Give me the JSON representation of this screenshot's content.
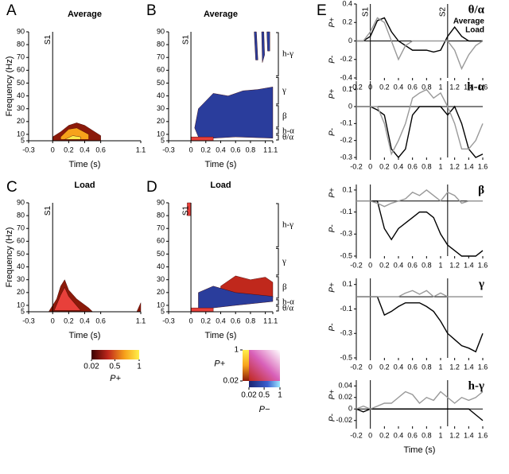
{
  "chart_data": [
    {
      "type": "contour",
      "panel": "A",
      "title": "Average",
      "title_color": "#000000",
      "ylabel": "Frequency (Hz)",
      "xlabel": "Time (s)",
      "xlim": [
        -0.3,
        1.1
      ],
      "xticks": [
        -0.3,
        0,
        0.2,
        0.4,
        0.6,
        1.1
      ],
      "ylim": [
        5,
        90
      ],
      "yticks": [
        5,
        10,
        20,
        30,
        40,
        50,
        60,
        70,
        80,
        90
      ],
      "events": [
        {
          "label": "S1",
          "x": 0
        }
      ],
      "regions": [
        {
          "color": "#8b1a0a",
          "x": [
            0,
            0.1,
            0.2,
            0.3,
            0.4,
            0.5,
            0.6,
            0.6,
            0
          ],
          "y": [
            8,
            12,
            17,
            19,
            17,
            13,
            9,
            5,
            5
          ]
        },
        {
          "color": "#f7a21b",
          "x": [
            0.1,
            0.2,
            0.3,
            0.45,
            0.45,
            0.1
          ],
          "y": [
            8,
            14,
            15,
            10,
            6,
            6
          ]
        },
        {
          "color": "#fde84a",
          "x": [
            0.15,
            0.25,
            0.35,
            0.35,
            0.15
          ],
          "y": [
            6,
            9,
            8,
            6,
            6
          ]
        }
      ]
    },
    {
      "type": "contour",
      "panel": "B",
      "title": "Average",
      "title_color": "#000000",
      "xlabel": "Time (s)",
      "xlim": [
        -0.3,
        1.1
      ],
      "xticks": [
        -0.3,
        0,
        0.2,
        0.4,
        0.6,
        0.8,
        1,
        1.1
      ],
      "ylim": [
        5,
        90
      ],
      "yticks": [
        5,
        10,
        20,
        30,
        40,
        50,
        60,
        70,
        80,
        90
      ],
      "events": [
        {
          "label": "S1",
          "x": 0
        }
      ],
      "bands": [
        {
          "label": "h-γ",
          "y": [
            55,
            90
          ]
        },
        {
          "label": "γ",
          "y": [
            33,
            55
          ]
        },
        {
          "label": "β",
          "y": [
            15,
            33
          ]
        },
        {
          "label": "h-α",
          "y": [
            10,
            15
          ]
        },
        {
          "label": "θ/α",
          "y": [
            5,
            10
          ]
        }
      ],
      "regions": [
        {
          "color": "#2a3d9c",
          "x": [
            0.05,
            0.1,
            0.3,
            0.5,
            0.7,
            0.9,
            1.1,
            1.1,
            0.6,
            0.3,
            0.1
          ],
          "y": [
            15,
            30,
            42,
            40,
            44,
            45,
            47,
            7,
            8,
            7,
            8
          ]
        },
        {
          "color": "#2a3d9c",
          "x": [
            0.85,
            0.88,
            0.9,
            0.87
          ],
          "y": [
            90,
            90,
            68,
            68
          ]
        },
        {
          "color": "#2a3d9c",
          "x": [
            0.95,
            0.98,
            0.99,
            0.96
          ],
          "y": [
            90,
            90,
            72,
            66
          ]
        },
        {
          "color": "#2a3d9c",
          "x": [
            1.02,
            1.06,
            1.06,
            1.03
          ],
          "y": [
            90,
            90,
            75,
            75
          ]
        },
        {
          "color": "#e8403a",
          "x": [
            0,
            0.3,
            0.3,
            0
          ],
          "y": [
            5,
            5,
            8,
            8
          ]
        }
      ]
    },
    {
      "type": "contour",
      "panel": "C",
      "title": "Load",
      "title_color": "#999999",
      "ylabel": "Frequency (Hz)",
      "xlabel": "Time (s)",
      "xlim": [
        -0.3,
        1.1
      ],
      "xticks": [
        -0.3,
        0,
        0.2,
        0.4,
        0.6,
        1.1
      ],
      "ylim": [
        5,
        90
      ],
      "yticks": [
        5,
        10,
        20,
        30,
        40,
        50,
        60,
        70,
        80,
        90
      ],
      "events": [
        {
          "label": "S1",
          "x": 0
        }
      ],
      "regions": [
        {
          "color": "#8b1a0a",
          "x": [
            -0.05,
            0.05,
            0.1,
            0.15,
            0.2,
            0.3,
            0.45,
            0.5,
            -0.05
          ],
          "y": [
            5,
            15,
            25,
            30,
            22,
            15,
            8,
            5,
            5
          ]
        },
        {
          "color": "#e8403a",
          "x": [
            0.02,
            0.1,
            0.15,
            0.2,
            0.35,
            0.02
          ],
          "y": [
            6,
            18,
            24,
            17,
            6,
            6
          ]
        },
        {
          "color": "#8b1a0a",
          "x": [
            1.05,
            1.1,
            1.1
          ],
          "y": [
            5,
            12,
            5
          ]
        }
      ]
    },
    {
      "type": "contour",
      "panel": "D",
      "title": "Load",
      "title_color": "#999999",
      "xlabel": "Time (s)",
      "xlim": [
        -0.3,
        1.1
      ],
      "xticks": [
        -0.3,
        0,
        0.2,
        0.4,
        0.6,
        0.8,
        1,
        1.1
      ],
      "ylim": [
        5,
        90
      ],
      "yticks": [
        5,
        10,
        20,
        30,
        40,
        50,
        60,
        70,
        80,
        90
      ],
      "events": [
        {
          "label": "S1",
          "x": 0
        }
      ],
      "bands": [
        {
          "label": "h-γ",
          "y": [
            55,
            90
          ]
        },
        {
          "label": "γ",
          "y": [
            33,
            55
          ]
        },
        {
          "label": "β",
          "y": [
            15,
            33
          ]
        },
        {
          "label": "h-α",
          "y": [
            10,
            15
          ]
        },
        {
          "label": "θ/α",
          "y": [
            5,
            10
          ]
        }
      ],
      "regions": [
        {
          "color": "#c0281c",
          "x": [
            0.4,
            0.6,
            0.8,
            1.0,
            1.1,
            1.1,
            0.4
          ],
          "y": [
            25,
            33,
            30,
            32,
            28,
            16,
            16
          ]
        },
        {
          "color": "#2a3d9c",
          "x": [
            0.1,
            0.3,
            0.6,
            1.1,
            1.1,
            0.6,
            0.3,
            0.1
          ],
          "y": [
            20,
            25,
            20,
            17,
            13,
            10,
            8,
            5
          ]
        },
        {
          "color": "#e8403a",
          "x": [
            -0.05,
            0,
            0,
            -0.05
          ],
          "y": [
            80,
            80,
            90,
            90
          ]
        },
        {
          "color": "#e8403a",
          "x": [
            0,
            0.3,
            0.3,
            0
          ],
          "y": [
            5,
            5,
            8,
            8
          ]
        }
      ]
    },
    {
      "type": "colorbar",
      "label": "P+",
      "ticks": [
        0.02,
        0.5,
        1
      ]
    },
    {
      "type": "colormap2d",
      "ylabel": "P+",
      "yticks": [
        0.02,
        1
      ],
      "xlabel": "P−",
      "xticks": [
        0.02,
        0.5,
        1
      ]
    },
    {
      "type": "line",
      "panel": "E",
      "title": "θ/α",
      "legend": "top-right",
      "ylabel_pos": "P+",
      "ylabel_neg": "P-",
      "x": [
        -0.2,
        -0.1,
        0,
        0.1,
        0.2,
        0.3,
        0.4,
        0.5,
        0.6,
        0.7,
        0.8,
        0.9,
        1,
        1.1,
        1.2,
        1.3,
        1.4,
        1.5,
        1.6
      ],
      "xlim": [
        -0.2,
        1.6
      ],
      "xticks": [
        -0.2,
        0,
        0.2,
        0.4,
        0.6,
        0.8,
        1,
        1.2,
        1.4,
        1.6
      ],
      "ylim": [
        -0.4,
        0.4
      ],
      "yticks": [
        0.4,
        0.2,
        0,
        -0.2,
        -0.4
      ],
      "events": [
        {
          "label": "S1",
          "x": 0
        },
        {
          "label": "S2",
          "x": 1.1
        }
      ],
      "series": [
        {
          "name": "Average",
          "color": "#000000",
          "values": [
            0,
            0,
            0.05,
            0.22,
            0.25,
            0.1,
            0,
            -0.05,
            -0.1,
            -0.1,
            -0.1,
            -0.12,
            -0.1,
            0.05,
            0.15,
            0.05,
            0,
            0,
            0
          ]
        },
        {
          "name": "Load",
          "color": "#999999",
          "values": [
            0,
            0,
            0.1,
            0.25,
            0.2,
            0,
            -0.2,
            -0.05,
            0,
            0,
            0,
            0,
            0,
            0,
            -0.1,
            -0.3,
            -0.15,
            -0.05,
            0
          ]
        }
      ]
    },
    {
      "type": "line",
      "title": "h-α",
      "ylabel_pos": "P+",
      "ylabel_neg": "P-",
      "x": [
        -0.2,
        -0.1,
        0,
        0.1,
        0.2,
        0.3,
        0.4,
        0.5,
        0.6,
        0.7,
        0.8,
        0.9,
        1,
        1.1,
        1.2,
        1.3,
        1.4,
        1.5,
        1.6
      ],
      "xlim": [
        -0.2,
        1.6
      ],
      "xticks": [
        -0.2,
        0,
        0.2,
        0.4,
        0.6,
        0.8,
        1,
        1.2,
        1.4,
        1.6
      ],
      "ylim": [
        -0.3,
        0.15
      ],
      "yticks": [
        0.1,
        0,
        -0.1,
        -0.2,
        -0.3
      ],
      "events": [
        {
          "x": 0
        },
        {
          "x": 1.1
        }
      ],
      "series": [
        {
          "color": "#000000",
          "values": [
            0,
            0,
            0,
            -0.02,
            -0.05,
            -0.25,
            -0.3,
            -0.25,
            -0.05,
            0,
            0,
            0,
            0,
            -0.05,
            0,
            -0.1,
            -0.25,
            -0.3,
            -0.28
          ]
        },
        {
          "color": "#999999",
          "values": [
            0,
            0,
            0,
            0,
            -0.1,
            -0.28,
            -0.2,
            -0.1,
            0.05,
            0.08,
            0.1,
            0.05,
            0.08,
            0,
            -0.1,
            -0.25,
            -0.25,
            -0.2,
            -0.1
          ]
        }
      ]
    },
    {
      "type": "line",
      "title": "β",
      "ylabel_pos": "P+",
      "ylabel_neg": "P-",
      "x": [
        -0.2,
        -0.1,
        0,
        0.1,
        0.2,
        0.3,
        0.4,
        0.5,
        0.6,
        0.7,
        0.8,
        0.9,
        1,
        1.1,
        1.2,
        1.3,
        1.4,
        1.5,
        1.6
      ],
      "xlim": [
        -0.2,
        1.6
      ],
      "xticks": [
        -0.2,
        0,
        0.2,
        0.4,
        0.6,
        0.8,
        1,
        1.2,
        1.4,
        1.6
      ],
      "ylim": [
        -0.5,
        0.15
      ],
      "yticks": [
        0.1,
        -0.1,
        -0.3,
        -0.5
      ],
      "events": [
        {
          "x": 0
        },
        {
          "x": 1.1
        }
      ],
      "series": [
        {
          "color": "#000000",
          "values": [
            0,
            0,
            0,
            0,
            -0.25,
            -0.35,
            -0.25,
            -0.2,
            -0.15,
            -0.1,
            -0.1,
            -0.15,
            -0.3,
            -0.4,
            -0.45,
            -0.5,
            -0.5,
            -0.5,
            -0.45
          ]
        },
        {
          "color": "#999999",
          "values": [
            0,
            0,
            0,
            -0.02,
            -0.05,
            -0.02,
            0,
            0.02,
            0.08,
            0.05,
            0.1,
            0.05,
            0,
            0.08,
            0.05,
            -0.02,
            0,
            0,
            0
          ]
        }
      ]
    },
    {
      "type": "line",
      "title": "γ",
      "ylabel_pos": "P+",
      "ylabel_neg": "P-",
      "x": [
        -0.2,
        -0.1,
        0,
        0.1,
        0.2,
        0.3,
        0.4,
        0.5,
        0.6,
        0.7,
        0.8,
        0.9,
        1,
        1.1,
        1.2,
        1.3,
        1.4,
        1.5,
        1.6
      ],
      "xlim": [
        -0.2,
        1.6
      ],
      "xticks": [
        -0.2,
        0,
        0.2,
        0.4,
        0.6,
        0.8,
        1,
        1.2,
        1.4,
        1.6
      ],
      "ylim": [
        -0.5,
        0.15
      ],
      "yticks": [
        0.1,
        -0.1,
        -0.3,
        -0.5
      ],
      "events": [
        {
          "x": 0
        },
        {
          "x": 1.1
        }
      ],
      "series": [
        {
          "color": "#000000",
          "values": [
            0,
            0,
            0,
            0,
            -0.15,
            -0.12,
            -0.08,
            -0.05,
            -0.05,
            -0.05,
            -0.08,
            -0.12,
            -0.2,
            -0.3,
            -0.35,
            -0.4,
            -0.42,
            -0.45,
            -0.3
          ]
        },
        {
          "color": "#999999",
          "values": [
            0,
            0,
            0,
            0,
            0,
            0,
            0,
            0.03,
            0.05,
            0.02,
            0.05,
            0,
            0.03,
            0,
            0,
            0,
            0,
            0,
            0
          ]
        }
      ]
    },
    {
      "type": "line",
      "title": "h-γ",
      "ylabel_pos": "P+",
      "ylabel_neg": "P-",
      "xlabel": "Time (s)",
      "x": [
        -0.2,
        -0.1,
        0,
        0.1,
        0.2,
        0.3,
        0.4,
        0.5,
        0.6,
        0.7,
        0.8,
        0.9,
        1,
        1.1,
        1.2,
        1.3,
        1.4,
        1.5,
        1.6
      ],
      "xlim": [
        -0.2,
        1.6
      ],
      "xticks": [
        -0.2,
        0,
        0.2,
        0.4,
        0.6,
        0.8,
        1,
        1.2,
        1.4,
        1.6
      ],
      "ylim": [
        -0.03,
        0.05
      ],
      "yticks": [
        0.04,
        0.02,
        0,
        -0.02
      ],
      "events": [
        {
          "x": 0
        },
        {
          "x": 1.1
        }
      ],
      "series": [
        {
          "color": "#000000",
          "values": [
            0,
            -0.005,
            0,
            0,
            0,
            0,
            0,
            0,
            0,
            0,
            0,
            0,
            0,
            0,
            0,
            0,
            0,
            -0.01,
            -0.02
          ]
        },
        {
          "color": "#999999",
          "values": [
            0,
            0.005,
            0,
            0.005,
            0.01,
            0.01,
            0.02,
            0.03,
            0.025,
            0.01,
            0.02,
            0.015,
            0.03,
            0.02,
            0.01,
            0.02,
            0.015,
            0.02,
            0.03
          ]
        }
      ]
    }
  ]
}
